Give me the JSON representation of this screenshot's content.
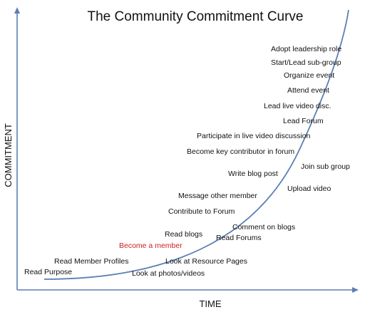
{
  "title": "The Community Commitment Curve",
  "axes": {
    "x_label": "TIME",
    "y_label": "COMMITMENT"
  },
  "colors": {
    "axis": "#5b7fb4",
    "curve": "#5b7fb4",
    "text": "#111111",
    "highlight": "#cc1f1f"
  },
  "steps": [
    {
      "label": "Read Purpose"
    },
    {
      "label": "Read Member Profiles"
    },
    {
      "label": "Look at photos/videos"
    },
    {
      "label": "Become a member",
      "highlight": true
    },
    {
      "label": "Look at Resource Pages"
    },
    {
      "label": "Read blogs"
    },
    {
      "label": "Read Forums"
    },
    {
      "label": "Comment on blogs"
    },
    {
      "label": "Contribute to Forum"
    },
    {
      "label": "Message other member"
    },
    {
      "label": "Upload video"
    },
    {
      "label": "Write blog post"
    },
    {
      "label": "Join sub group"
    },
    {
      "label": "Become key contributor in forum"
    },
    {
      "label": "Participate in live video discussion"
    },
    {
      "label": "Lead Forum"
    },
    {
      "label": "Lead live video disc."
    },
    {
      "label": "Attend event"
    },
    {
      "label": "Organize event"
    },
    {
      "label": "Start/Lead sub-group"
    },
    {
      "label": "Adopt leadership role"
    }
  ]
}
